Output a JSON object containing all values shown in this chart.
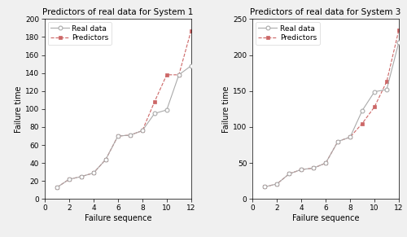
{
  "sys1": {
    "title": "Predictors of real data for System 1",
    "xlabel": "Failure sequence",
    "ylabel": "Failure time",
    "xlim": [
      0,
      12
    ],
    "ylim": [
      0,
      200
    ],
    "yticks": [
      0,
      20,
      40,
      60,
      80,
      100,
      120,
      140,
      160,
      180,
      200
    ],
    "xticks": [
      0,
      2,
      4,
      6,
      8,
      10,
      12
    ],
    "real_x": [
      1,
      2,
      3,
      4,
      5,
      6,
      7,
      8,
      9,
      10,
      11,
      12
    ],
    "real_y": [
      13,
      22,
      25,
      29,
      44,
      70,
      71,
      76,
      95,
      99,
      138,
      148
    ],
    "pred_x": [
      1,
      2,
      3,
      4,
      5,
      6,
      7,
      8,
      9,
      10,
      11,
      12
    ],
    "pred_y": [
      13,
      22,
      25,
      29,
      44,
      70,
      71,
      76,
      108,
      138,
      138,
      187
    ]
  },
  "sys3": {
    "title": "Predictors of real data for System 3",
    "xlabel": "Failure sequence",
    "ylabel": "Failure time",
    "xlim": [
      0,
      12
    ],
    "ylim": [
      0,
      250
    ],
    "yticks": [
      0,
      50,
      100,
      150,
      200,
      250
    ],
    "xticks": [
      0,
      2,
      4,
      6,
      8,
      10,
      12
    ],
    "real_x": [
      1,
      2,
      3,
      4,
      5,
      6,
      7,
      8,
      9,
      10,
      11,
      12
    ],
    "real_y": [
      17,
      21,
      35,
      41,
      43,
      50,
      80,
      86,
      123,
      149,
      152,
      218
    ],
    "pred_x": [
      1,
      2,
      3,
      4,
      5,
      6,
      7,
      8,
      9,
      10,
      11,
      12
    ],
    "pred_y": [
      17,
      21,
      35,
      41,
      43,
      50,
      80,
      86,
      105,
      128,
      163,
      235
    ]
  },
  "real_color": "#aaaaaa",
  "pred_color": "#cc6666",
  "real_marker": "o",
  "pred_marker": "s",
  "real_linestyle": "-",
  "pred_linestyle": "--",
  "legend_labels": [
    "Real data",
    "Predictors"
  ],
  "title_fontsize": 7.5,
  "label_fontsize": 7,
  "tick_fontsize": 6.5,
  "legend_fontsize": 6.5,
  "linewidth": 0.8,
  "markersize": 3.5,
  "fig_bg": "#f0f0f0",
  "ax_bg": "#ffffff"
}
